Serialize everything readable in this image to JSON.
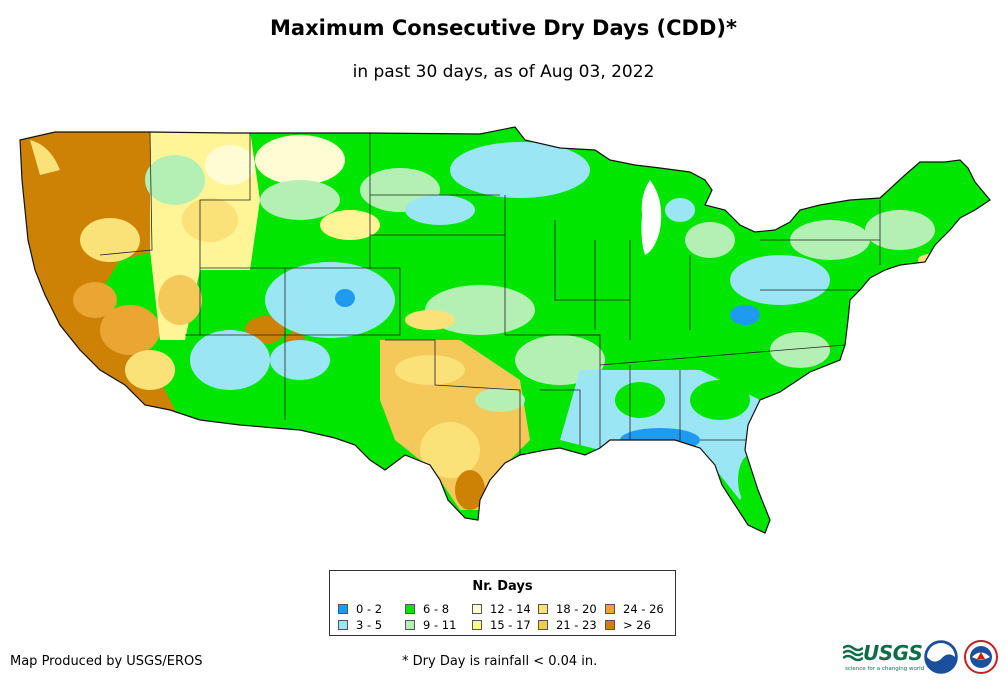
{
  "title": "Maximum Consecutive Dry Days (CDD)*",
  "subtitle": "in past 30 days, as of Aug 03, 2022",
  "legend": {
    "title": "Nr. Days",
    "items": [
      {
        "label": "0 - 2",
        "color": "#1e9bf0"
      },
      {
        "label": "3 - 5",
        "color": "#9be6f5"
      },
      {
        "label": "6 - 8",
        "color": "#00e600"
      },
      {
        "label": "9 - 11",
        "color": "#b4f0b4"
      },
      {
        "label": "12 - 14",
        "color": "#fffbd2"
      },
      {
        "label": "15 - 17",
        "color": "#fff596"
      },
      {
        "label": "18 - 20",
        "color": "#fae178"
      },
      {
        "label": "21 - 23",
        "color": "#f5c85a"
      },
      {
        "label": "24 - 26",
        "color": "#eba532"
      },
      {
        "label": "> 26",
        "color": "#cd8205"
      }
    ]
  },
  "footer": {
    "producer": "Map Produced by USGS/EROS",
    "note": "* Dry Day is rainfall < 0.04 in."
  },
  "logos": {
    "usgs_word": "USGS",
    "usgs_tagline": "science for a changing world"
  }
}
